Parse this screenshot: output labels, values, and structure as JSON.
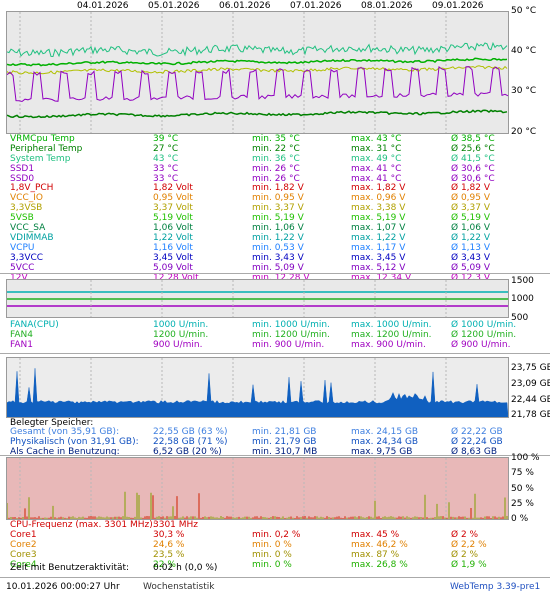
{
  "dates": [
    "04.01.2026",
    "05.01.2026",
    "06.01.2026",
    "07.01.2026",
    "08.01.2026",
    "09.01.2026"
  ],
  "temp_axis": [
    "50 °C",
    "40 °C",
    "30 °C",
    "20 °C"
  ],
  "temps": [
    {
      "name": "VRMCpu Temp",
      "val": "39 °C",
      "min": "min. 35 °C",
      "max": "max. 43 °C",
      "avg": "Ø 38,5 °C",
      "color": "#00b000"
    },
    {
      "name": "Peripheral Temp",
      "val": "27 °C",
      "min": "min. 22 °C",
      "max": "max. 31 °C",
      "avg": "Ø 25,6 °C",
      "color": "#008000"
    },
    {
      "name": "System Temp",
      "val": "43 °C",
      "min": "min. 36 °C",
      "max": "max. 49 °C",
      "avg": "Ø 41,5 °C",
      "color": "#20c080"
    },
    {
      "name": "SSD1",
      "val": "33 °C",
      "min": "min. 26 °C",
      "max": "max. 41 °C",
      "avg": "Ø 30,6 °C",
      "color": "#9000c0"
    },
    {
      "name": "SSD0",
      "val": "33 °C",
      "min": "min. 26 °C",
      "max": "max. 41 °C",
      "avg": "Ø 30,6 °C",
      "color": "#9000c0"
    }
  ],
  "volts": [
    {
      "name": "1,8V_PCH",
      "val": "1,82 Volt",
      "min": "min. 1,82 V",
      "max": "max. 1,82 V",
      "avg": "Ø 1,82 V",
      "color": "#d00000"
    },
    {
      "name": "VCC_IO",
      "val": "0,95 Volt",
      "min": "min. 0,95 V",
      "max": "max. 0,96 V",
      "avg": "Ø 0,95 V",
      "color": "#e08000"
    },
    {
      "name": "3,3VSB",
      "val": "3,37 Volt",
      "min": "min. 3,37 V",
      "max": "max. 3,38 V",
      "avg": "Ø 3,37 V",
      "color": "#b0a000"
    },
    {
      "name": "5VSB",
      "val": "5,19 Volt",
      "min": "min. 5,19 V",
      "max": "max. 5,19 V",
      "avg": "Ø 5,19 V",
      "color": "#20c000"
    },
    {
      "name": "VCC_SA",
      "val": "1,06 Volt",
      "min": "min. 1,06 V",
      "max": "max. 1,07 V",
      "avg": "Ø 1,06 V",
      "color": "#008040"
    },
    {
      "name": "VDIMMAB",
      "val": "1,22 Volt",
      "min": "min. 1,22 V",
      "max": "max. 1,22 V",
      "avg": "Ø 1,22 V",
      "color": "#00a0a0"
    },
    {
      "name": "VCPU",
      "val": "1,16 Volt",
      "min": "min. 0,53 V",
      "max": "max. 1,17 V",
      "avg": "Ø 1,13 V",
      "color": "#2080ff"
    },
    {
      "name": "3,3VCC",
      "val": "3,45 Volt",
      "min": "min. 3,43 V",
      "max": "max. 3,45 V",
      "avg": "Ø 3,43 V",
      "color": "#0000c0"
    },
    {
      "name": "5VCC",
      "val": "5,09 Volt",
      "min": "min. 5,09 V",
      "max": "max. 5,12 V",
      "avg": "Ø 5,09 V",
      "color": "#8000c0"
    },
    {
      "name": "12V",
      "val": "12,28 Volt",
      "min": "min. 12,28 V",
      "max": "max. 12,34 V",
      "avg": "Ø 12,3 V",
      "color": "#c000c0"
    }
  ],
  "fan_axis": [
    "1500",
    "1000",
    "500"
  ],
  "fans": [
    {
      "name": "FANA(CPU)",
      "val": "1000 U/min.",
      "min": "min. 1000 U/min.",
      "max": "max. 1000 U/min.",
      "avg": "Ø 1000 U/min.",
      "color": "#00b0b0"
    },
    {
      "name": "FAN4",
      "val": "1200 U/min.",
      "min": "min. 1200 U/min.",
      "max": "max. 1200 U/min.",
      "avg": "Ø 1200 U/min.",
      "color": "#20b020"
    },
    {
      "name": "FAN1",
      "val": "900 U/min.",
      "min": "min. 900 U/min.",
      "max": "max. 900 U/min.",
      "avg": "Ø 900 U/min.",
      "color": "#a000c0"
    }
  ],
  "mem_axis": [
    "23,75 GB",
    "23,09 GB",
    "22,44 GB",
    "21,78 GB"
  ],
  "mem_header": "Belegter Speicher:",
  "mem": [
    {
      "name": "Gesamt (von 35,91 GB):",
      "val": "22,55 GB (63 %)",
      "min": "min. 21,81 GB",
      "max": "max. 24,15 GB",
      "avg": "Ø 22,22 GB",
      "color": "#4080e0"
    },
    {
      "name": "Physikalisch (von 31,91 GB):",
      "val": "22,58 GB (71 %)",
      "min": "min. 21,79 GB",
      "max": "max. 24,34 GB",
      "avg": "Ø 22,24 GB",
      "color": "#1050c0"
    },
    {
      "name": "Als Cache in Benutzung:",
      "val": "6,52 GB (20 %)",
      "min": "min. 310,7 MB",
      "max": "max. 9,75 GB",
      "avg": "Ø 8,63 GB",
      "color": "#002080"
    }
  ],
  "cpu_axis": [
    "100 %",
    "75 %",
    "50 %",
    "25 %",
    "0 %"
  ],
  "cpu_freq": {
    "label": "CPU-Frequenz (max. 3301 MHz):",
    "val": "3301 MHz",
    "color": "#d00000"
  },
  "cores": [
    {
      "name": "Core1",
      "val": "30,3 %",
      "min": "min. 0,2 %",
      "max": "max. 45 %",
      "avg": "Ø 2 %",
      "color": "#d00000"
    },
    {
      "name": "Core2",
      "val": "24,6 %",
      "min": "min. 0 %",
      "max": "max. 46,2 %",
      "avg": "Ø 2,2 %",
      "color": "#e08000"
    },
    {
      "name": "Core3",
      "val": "23,5 %",
      "min": "min. 0 %",
      "max": "max. 87 %",
      "avg": "Ø 2 %",
      "color": "#a09000"
    },
    {
      "name": "Core4",
      "val": "22 %",
      "min": "min. 0 %",
      "max": "max. 26,8 %",
      "avg": "Ø 1,9 %",
      "color": "#20b000"
    }
  ],
  "activity": {
    "label": "Zeit mit Benutzeraktivität:",
    "val": "0:02 h (0,0 %)"
  },
  "footer": {
    "timestamp": "10.01.2026 00:00:27 Uhr",
    "weekly": "Wochenstatistik",
    "version": "WebTemp 3.39-pre1"
  }
}
